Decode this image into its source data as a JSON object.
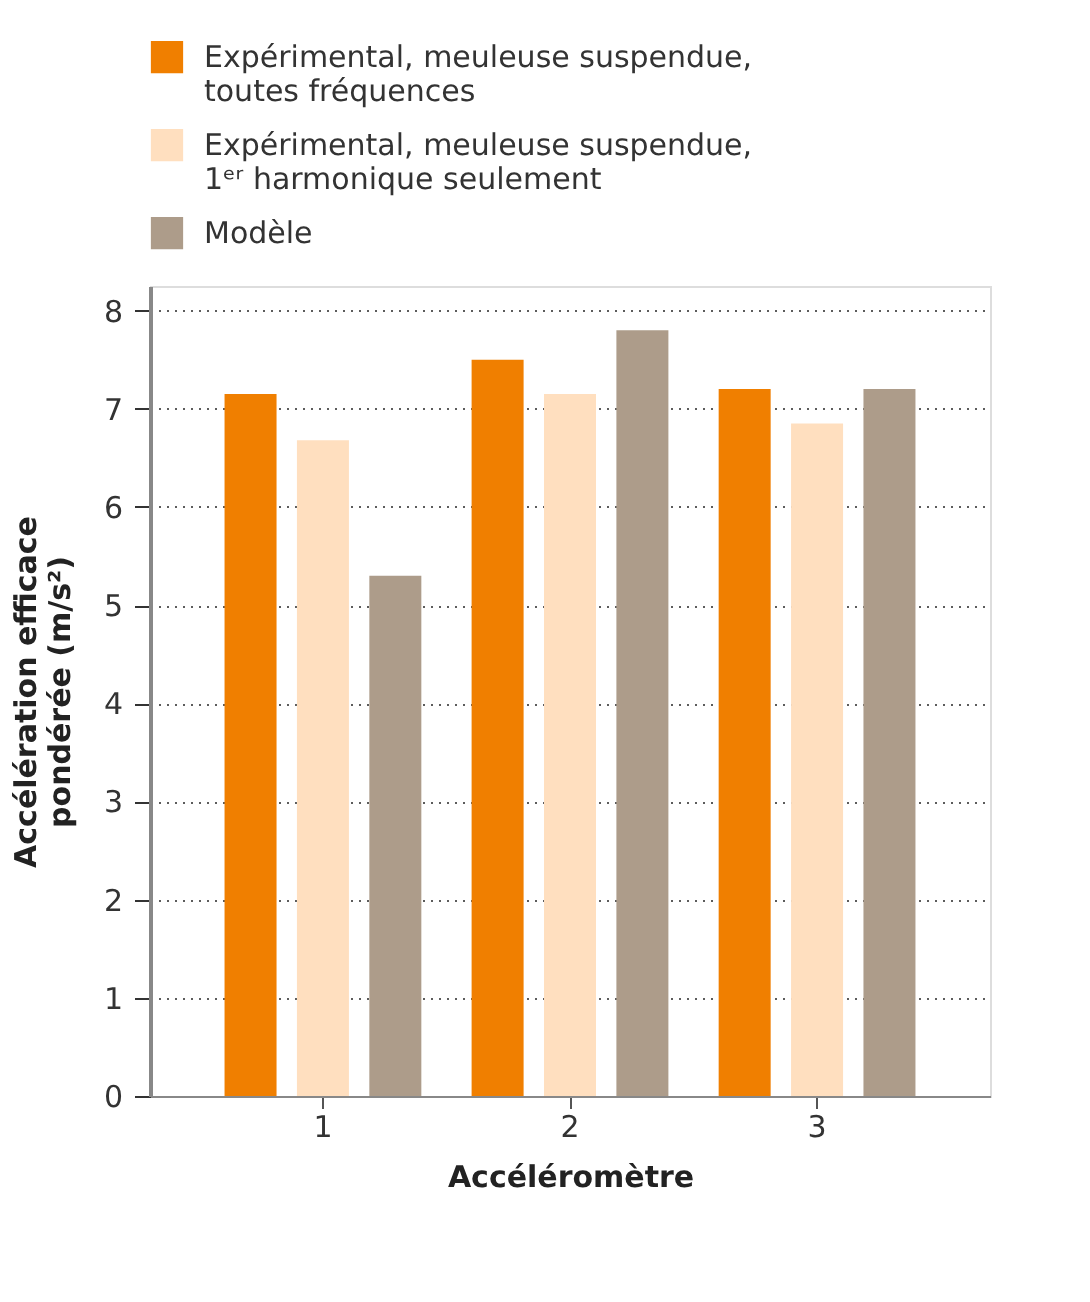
{
  "chart_data": {
    "type": "bar",
    "xlabel": "Accéléromètre",
    "ylabel": "Accélération efficace pondérée (m/s²)",
    "categories": [
      "1",
      "2",
      "3"
    ],
    "series": [
      {
        "name": "Expérimental, meuleuse suspendue, toutes fréquences",
        "color": "#f07f00",
        "values": [
          7.15,
          7.5,
          7.2
        ]
      },
      {
        "name": "Expérimental, meuleuse suspendue, 1ᵉʳ harmonique seulement",
        "color": "#ffdfbf",
        "values": [
          6.68,
          7.15,
          6.85
        ]
      },
      {
        "name": "Modèle",
        "color": "#ad9c8a",
        "values": [
          5.3,
          7.8,
          7.2
        ]
      }
    ],
    "ylim": [
      0,
      8.25
    ],
    "yticks": [
      0,
      1,
      2,
      3,
      4,
      5,
      6,
      7,
      8
    ],
    "grid": "y",
    "legend": "top"
  }
}
